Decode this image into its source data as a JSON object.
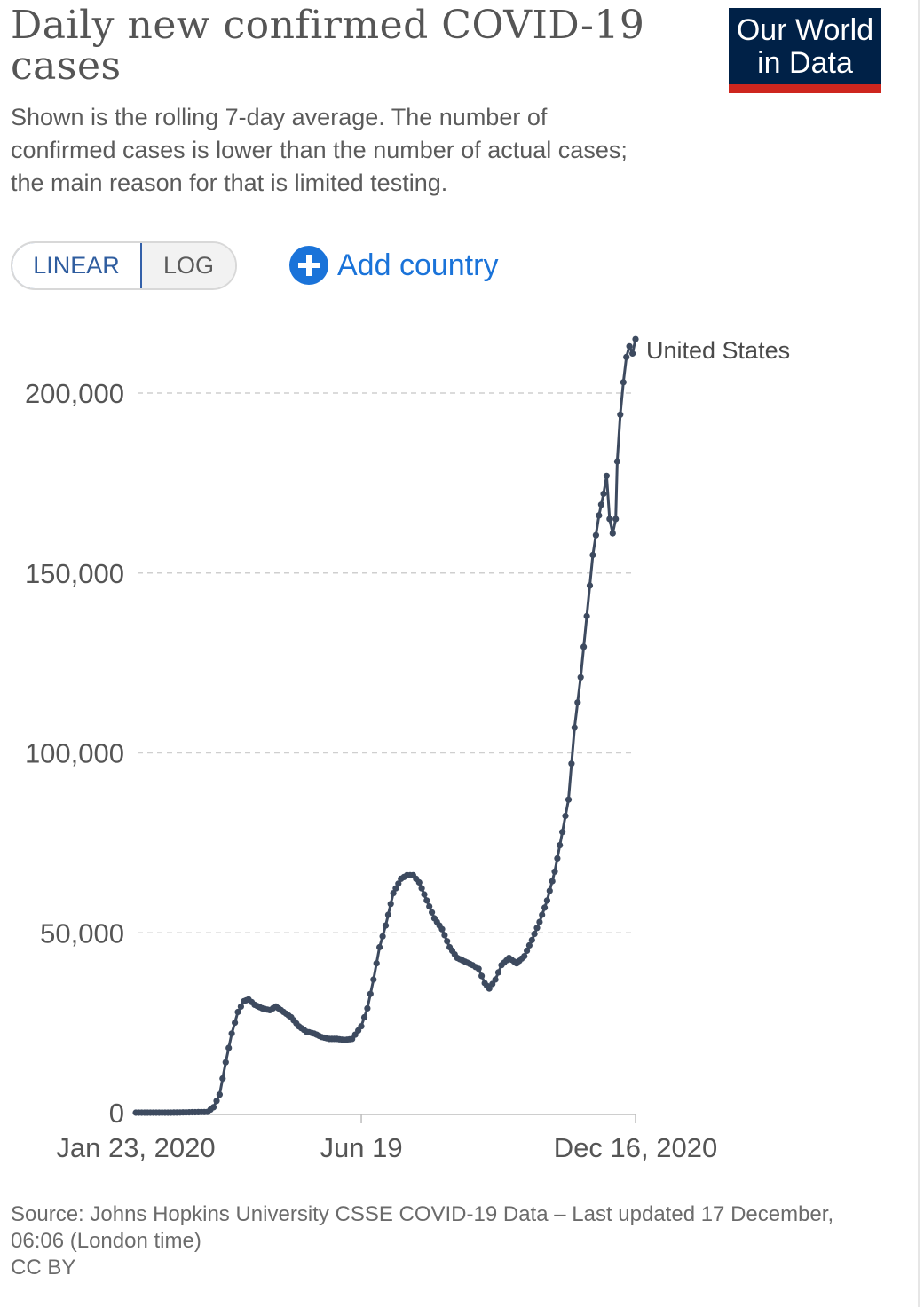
{
  "header": {
    "title": "Daily new confirmed COVID-19 cases",
    "subtitle": "Shown is the rolling 7-day average. The number of confirmed cases is lower than the number of actual cases; the main reason for that is limited testing."
  },
  "logo": {
    "text": "Our World\nin Data",
    "background_color": "#002147",
    "bar_color": "#ce261e"
  },
  "controls": {
    "linear_label": "LINEAR",
    "log_label": "LOG",
    "selected_scale": "LINEAR",
    "add_country_label": "Add country",
    "add_country_icon": "plus-circle-icon",
    "accent_color": "#1a73d9"
  },
  "chart_data": {
    "type": "line",
    "title": "Daily new confirmed COVID-19 cases",
    "xlabel": "",
    "ylabel": "",
    "x_start": "2020-01-23",
    "x_end": "2020-12-16",
    "x_ticks": [
      "Jan 23, 2020",
      "Jun 19",
      "Dec 16, 2020"
    ],
    "y_ticks": [
      "0",
      "50,000",
      "100,000",
      "150,000",
      "200,000"
    ],
    "y_tick_values": [
      0,
      50000,
      100000,
      150000,
      200000
    ],
    "ylim": [
      0,
      200000
    ],
    "grid": "horizontal dashed",
    "legend": "inline label at line end",
    "markers": true,
    "series": [
      {
        "name": "United States",
        "color": "#3d4a5f",
        "points": [
          [
            "2020-01-23",
            0
          ],
          [
            "2020-02-15",
            0
          ],
          [
            "2020-03-10",
            200
          ],
          [
            "2020-03-14",
            1500
          ],
          [
            "2020-03-18",
            5000
          ],
          [
            "2020-03-22",
            14000
          ],
          [
            "2020-03-26",
            22000
          ],
          [
            "2020-03-30",
            28000
          ],
          [
            "2020-04-03",
            31000
          ],
          [
            "2020-04-06",
            31500
          ],
          [
            "2020-04-10",
            30000
          ],
          [
            "2020-04-15",
            29000
          ],
          [
            "2020-04-20",
            28500
          ],
          [
            "2020-04-24",
            29500
          ],
          [
            "2020-04-29",
            28000
          ],
          [
            "2020-05-04",
            26500
          ],
          [
            "2020-05-09",
            24000
          ],
          [
            "2020-05-14",
            22500
          ],
          [
            "2020-05-19",
            22000
          ],
          [
            "2020-05-24",
            21000
          ],
          [
            "2020-05-29",
            20500
          ],
          [
            "2020-06-03",
            20500
          ],
          [
            "2020-06-08",
            20200
          ],
          [
            "2020-06-13",
            20500
          ],
          [
            "2020-06-19",
            24000
          ],
          [
            "2020-06-23",
            29000
          ],
          [
            "2020-06-27",
            37000
          ],
          [
            "2020-07-01",
            46000
          ],
          [
            "2020-07-05",
            52000
          ],
          [
            "2020-07-10",
            61000
          ],
          [
            "2020-07-15",
            65000
          ],
          [
            "2020-07-19",
            66000
          ],
          [
            "2020-07-23",
            66000
          ],
          [
            "2020-07-27",
            64000
          ],
          [
            "2020-08-01",
            59000
          ],
          [
            "2020-08-06",
            54000
          ],
          [
            "2020-08-11",
            51000
          ],
          [
            "2020-08-16",
            46000
          ],
          [
            "2020-08-21",
            43000
          ],
          [
            "2020-08-26",
            42000
          ],
          [
            "2020-08-31",
            41000
          ],
          [
            "2020-09-04",
            40000
          ],
          [
            "2020-09-08",
            36000
          ],
          [
            "2020-09-11",
            34500
          ],
          [
            "2020-09-15",
            37000
          ],
          [
            "2020-09-19",
            41000
          ],
          [
            "2020-09-24",
            43000
          ],
          [
            "2020-09-29",
            41500
          ],
          [
            "2020-10-04",
            43500
          ],
          [
            "2020-10-09",
            48000
          ],
          [
            "2020-10-14",
            53000
          ],
          [
            "2020-10-19",
            59000
          ],
          [
            "2020-10-24",
            67000
          ],
          [
            "2020-10-29",
            78000
          ],
          [
            "2020-11-02",
            87000
          ],
          [
            "2020-11-06",
            107000
          ],
          [
            "2020-11-10",
            121000
          ],
          [
            "2020-11-14",
            138000
          ],
          [
            "2020-11-18",
            155000
          ],
          [
            "2020-11-22",
            166000
          ],
          [
            "2020-11-25",
            172000
          ],
          [
            "2020-11-27",
            177000
          ],
          [
            "2020-11-29",
            165000
          ],
          [
            "2020-12-01",
            161000
          ],
          [
            "2020-12-03",
            165000
          ],
          [
            "2020-12-04",
            181000
          ],
          [
            "2020-12-06",
            194000
          ],
          [
            "2020-12-08",
            203000
          ],
          [
            "2020-12-10",
            210000
          ],
          [
            "2020-12-12",
            213000
          ],
          [
            "2020-12-14",
            211000
          ],
          [
            "2020-12-16",
            215000
          ]
        ]
      }
    ]
  },
  "footer": {
    "source": "Source: Johns Hopkins University CSSE COVID-19 Data – Last updated 17 December, 06:06 (London time)",
    "license": "CC BY"
  }
}
